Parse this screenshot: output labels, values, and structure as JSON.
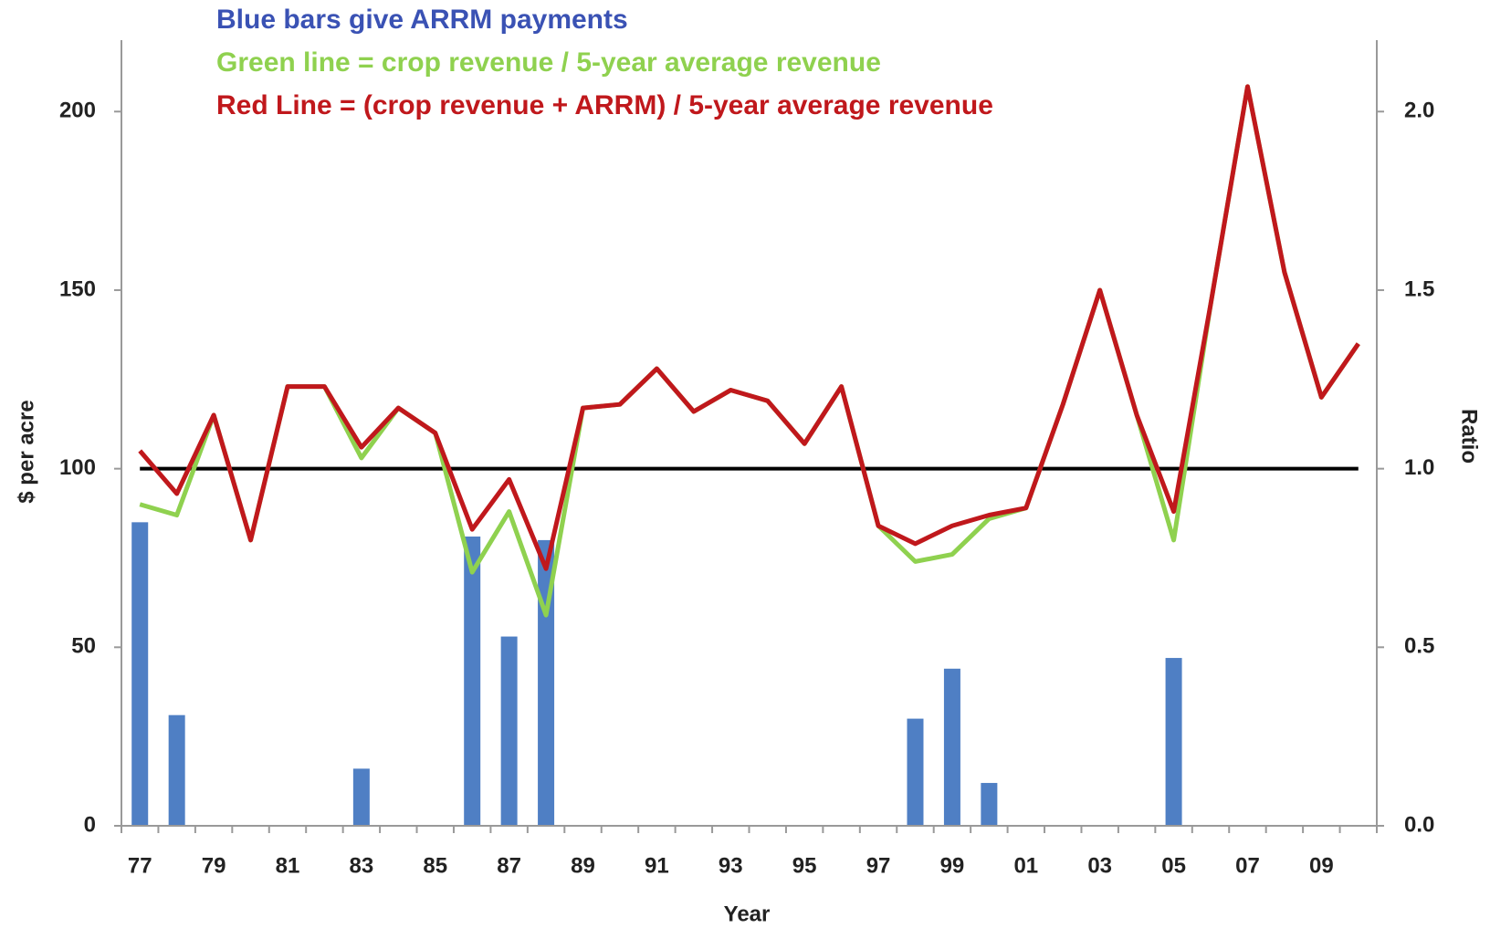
{
  "chart_data": {
    "type": "bar_line",
    "annotations": [
      {
        "text": "Blue bars give ARRM payments",
        "color": "#3a52b4"
      },
      {
        "text": "Green line = crop revenue / 5-year average revenue",
        "color": "#8fd14f"
      },
      {
        "text": "Red Line = (crop revenue + ARRM) / 5-year average revenue",
        "color": "#c0181c"
      }
    ],
    "x_label": "Year",
    "y_label": "$ per acre",
    "y2_label": "Ratio",
    "categories": [
      "77",
      null,
      "79",
      null,
      "81",
      null,
      "83",
      null,
      "85",
      null,
      "87",
      null,
      "89",
      null,
      "91",
      null,
      "93",
      null,
      "95",
      null,
      "97",
      null,
      "99",
      null,
      "01",
      null,
      "03",
      null,
      "05",
      null,
      "07",
      null,
      "09",
      null
    ],
    "ylim": [
      0,
      220
    ],
    "yticks": [
      0,
      50,
      100,
      150,
      200
    ],
    "y2lim": [
      0,
      2.2
    ],
    "y2ticks": [
      {
        "value": 0,
        "label": "0.0"
      },
      0.5,
      {
        "value": 1,
        "label": "1.0"
      },
      1.5,
      {
        "value": 2,
        "label": "2.0"
      }
    ],
    "hlines": [
      {
        "value": 1,
        "axis": "y2",
        "color": "#000000"
      }
    ],
    "series": [
      {
        "type": "bar",
        "color": "#4f7fc4",
        "values": [
          85,
          31,
          0,
          0,
          0,
          0,
          16,
          0,
          0,
          81,
          53,
          80,
          0,
          0,
          0,
          0,
          0,
          0,
          0,
          0,
          0,
          30,
          44,
          12,
          0,
          0,
          0,
          0,
          47,
          0,
          0,
          0,
          0,
          0
        ]
      },
      {
        "type": "line",
        "axis": "y2",
        "color": "#8fd14f",
        "values": [
          0.9,
          0.87,
          1.15,
          0.8,
          1.23,
          1.23,
          1.03,
          1.17,
          1.1,
          0.71,
          0.88,
          0.59,
          1.17,
          1.18,
          1.28,
          1.16,
          1.22,
          1.19,
          1.07,
          1.23,
          0.84,
          0.74,
          0.76,
          0.86,
          0.89,
          1.18,
          1.5,
          1.15,
          0.8,
          1.46,
          2.07,
          1.55,
          1.2,
          1.35
        ]
      },
      {
        "type": "line",
        "axis": "y2",
        "color": "#c0181c",
        "values": [
          1.05,
          0.93,
          1.15,
          0.8,
          1.23,
          1.23,
          1.06,
          1.17,
          1.1,
          0.83,
          0.97,
          0.72,
          1.17,
          1.18,
          1.28,
          1.16,
          1.22,
          1.19,
          1.07,
          1.23,
          0.84,
          0.79,
          0.84,
          0.87,
          0.89,
          1.18,
          1.5,
          1.15,
          0.88,
          1.46,
          2.07,
          1.55,
          1.2,
          1.35
        ]
      }
    ]
  }
}
